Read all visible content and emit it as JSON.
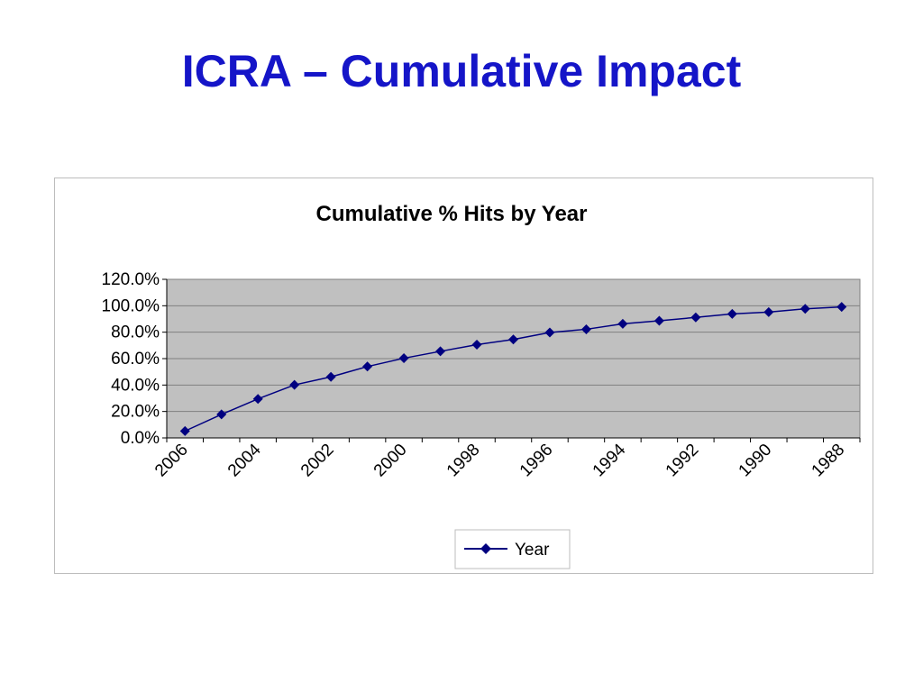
{
  "slide": {
    "title": "ICRA – Cumulative Impact"
  },
  "colors": {
    "title": "#1515c8",
    "series": "#000080",
    "plot_area": "#c0c0c0",
    "gridline": "#808080"
  },
  "chart_data": {
    "type": "line",
    "title": "Cumulative % Hits by Year",
    "xlabel": "",
    "ylabel": "",
    "x": [
      2006,
      2005,
      2004,
      2003,
      2002,
      2001,
      2000,
      1999,
      1998,
      1997,
      1996,
      1995,
      1994,
      1993,
      1992,
      1991,
      1990,
      1989,
      1988
    ],
    "x_tick_labels": [
      "2006",
      "2004",
      "2002",
      "2000",
      "1998",
      "1996",
      "1994",
      "1992",
      "1990",
      "1988"
    ],
    "series": [
      {
        "name": "Year",
        "marker": "diamond",
        "values": [
          5.2,
          17.8,
          29.5,
          40.1,
          46.2,
          54.0,
          60.3,
          65.5,
          70.6,
          74.5,
          79.8,
          82.2,
          86.3,
          88.6,
          91.2,
          93.8,
          95.2,
          97.7,
          99.1
        ]
      }
    ],
    "ylim": [
      0,
      120
    ],
    "y_tick_labels": [
      "0.0%",
      "20.0%",
      "40.0%",
      "60.0%",
      "80.0%",
      "100.0%",
      "120.0%"
    ],
    "y_ticks": [
      0,
      20,
      40,
      60,
      80,
      100,
      120
    ],
    "grid": true,
    "legend": {
      "position": "bottom",
      "entries": [
        "Year"
      ]
    }
  }
}
